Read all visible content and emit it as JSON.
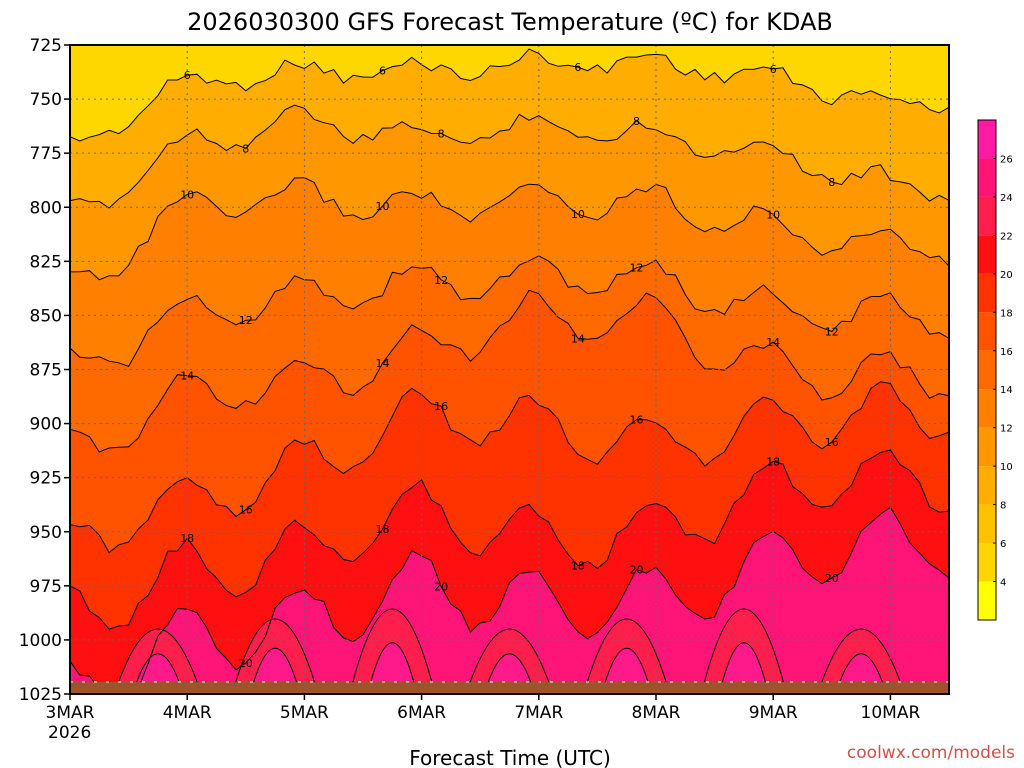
{
  "chart_data": {
    "type": "heatmap",
    "title": "2026030300  GFS Forecast Temperature (ºC) for KDAB",
    "xlabel": "Forecast Time (UTC)",
    "ylabel": "",
    "ylim": [
      1025,
      725
    ],
    "y_ticks": [
      "725",
      "750",
      "775",
      "800",
      "825",
      "850",
      "875",
      "900",
      "925",
      "950",
      "975",
      "1000",
      "1025"
    ],
    "x_ticks": [
      "3MAR",
      "4MAR",
      "5MAR",
      "6MAR",
      "7MAR",
      "8MAR",
      "9MAR",
      "10MAR"
    ],
    "x_year_label": "2026",
    "colorbar": {
      "levels": [
        "4",
        "6",
        "8",
        "10",
        "12",
        "14",
        "16",
        "18",
        "20",
        "22",
        "24",
        "26"
      ],
      "colors": [
        "#ffff00",
        "#ffd700",
        "#ffc200",
        "#ffad00",
        "#ff9800",
        "#ff8000",
        "#ff6a00",
        "#ff5300",
        "#ff3300",
        "#ff0f0f",
        "#ff1f4c",
        "#ff1577",
        "#ff1aa3"
      ]
    },
    "contour_labels": [
      "6",
      "6",
      "6",
      "6",
      "6",
      "8",
      "8",
      "8",
      "8",
      "8",
      "10",
      "10",
      "10",
      "10",
      "10",
      "10",
      "12",
      "12",
      "12",
      "12",
      "14",
      "14",
      "14",
      "14",
      "14",
      "14",
      "16",
      "16",
      "16",
      "16",
      "16",
      "16",
      "16",
      "18",
      "18",
      "18",
      "18",
      "18",
      "20",
      "20",
      "20",
      "20",
      "22"
    ],
    "series": [
      {
        "name": "6",
        "pressure_at_day": [
          [
            0,
            773
          ],
          [
            1,
            742
          ],
          [
            2,
            737
          ],
          [
            3,
            737
          ],
          [
            4,
            733
          ],
          [
            5,
            733
          ],
          [
            6,
            740
          ],
          [
            7,
            752
          ]
        ]
      },
      {
        "name": "8",
        "pressure_at_day": [
          [
            0,
            805
          ],
          [
            1,
            770
          ],
          [
            2,
            760
          ],
          [
            3,
            768
          ],
          [
            4,
            762
          ],
          [
            5,
            767
          ],
          [
            6,
            775
          ],
          [
            7,
            790
          ]
        ]
      },
      {
        "name": "10",
        "pressure_at_day": [
          [
            0,
            838
          ],
          [
            1,
            800
          ],
          [
            2,
            795
          ],
          [
            3,
            800
          ],
          [
            4,
            797
          ],
          [
            5,
            797
          ],
          [
            6,
            810
          ],
          [
            7,
            818
          ]
        ]
      },
      {
        "name": "12",
        "pressure_at_day": [
          [
            0,
            875
          ],
          [
            1,
            850
          ],
          [
            2,
            840
          ],
          [
            3,
            835
          ],
          [
            4,
            832
          ],
          [
            5,
            833
          ],
          [
            6,
            848
          ],
          [
            7,
            850
          ]
        ]
      },
      {
        "name": "14",
        "pressure_at_day": [
          [
            0,
            915
          ],
          [
            1,
            885
          ],
          [
            2,
            880
          ],
          [
            3,
            865
          ],
          [
            4,
            850
          ],
          [
            5,
            853
          ],
          [
            6,
            875
          ],
          [
            7,
            878
          ]
        ]
      },
      {
        "name": "16",
        "pressure_at_day": [
          [
            0,
            955
          ],
          [
            1,
            935
          ],
          [
            2,
            920
          ],
          [
            3,
            895
          ],
          [
            4,
            900
          ],
          [
            5,
            910
          ],
          [
            6,
            900
          ],
          [
            7,
            895
          ]
        ]
      },
      {
        "name": "18",
        "pressure_at_day": [
          [
            0,
            990
          ],
          [
            1,
            968
          ],
          [
            2,
            960
          ],
          [
            3,
            940
          ],
          [
            4,
            955
          ],
          [
            5,
            950
          ],
          [
            6,
            930
          ],
          [
            7,
            925
          ]
        ]
      },
      {
        "name": "20",
        "pressure_at_day": [
          [
            0,
            1025
          ],
          [
            1,
            1000
          ],
          [
            2,
            990
          ],
          [
            3,
            975
          ],
          [
            4,
            983
          ],
          [
            5,
            982
          ],
          [
            6,
            965
          ],
          [
            7,
            955
          ]
        ]
      }
    ]
  },
  "footer": {
    "credit": "coolwx.com/models"
  }
}
